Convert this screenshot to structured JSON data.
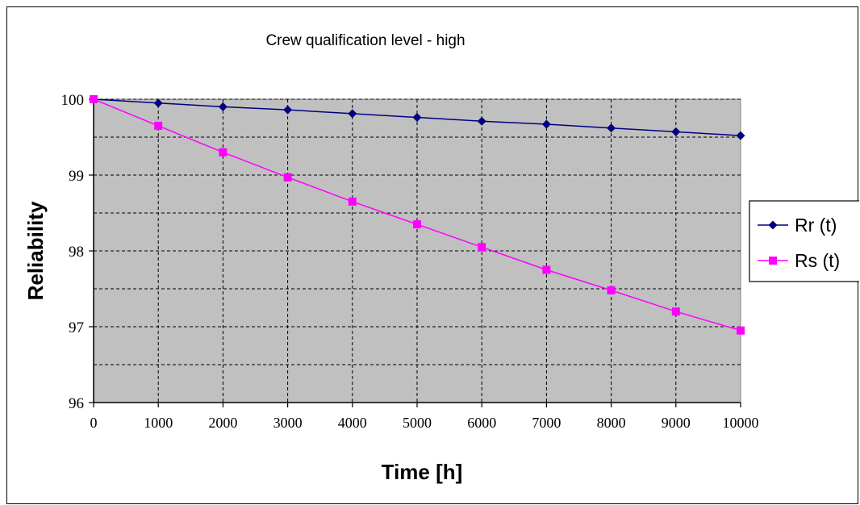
{
  "chart_data": {
    "type": "line",
    "title": "Crew qualification level - high",
    "xlabel": "Time [h]",
    "ylabel": "Reliability",
    "xlim": [
      0,
      10000
    ],
    "ylim": [
      96,
      100
    ],
    "x": [
      0,
      1000,
      2000,
      3000,
      4000,
      5000,
      6000,
      7000,
      8000,
      9000,
      10000
    ],
    "x_tick_labels": [
      "0",
      "1000",
      "2000",
      "3000",
      "4000",
      "5000",
      "6000",
      "7000",
      "8000",
      "9000",
      "10000"
    ],
    "y_ticks": [
      96,
      97,
      98,
      99,
      100
    ],
    "y_tick_labels": [
      "96",
      "97",
      "98",
      "99",
      "100"
    ],
    "y_minor_gridlines": [
      96.5,
      97.5,
      98.5,
      99.5
    ],
    "grid": true,
    "plot_background": "#c0c0c0",
    "legend_position": "right",
    "series": [
      {
        "name": "Rr (t)",
        "color": "#000080",
        "marker": "diamond",
        "values": [
          100.0,
          99.95,
          99.9,
          99.86,
          99.81,
          99.76,
          99.71,
          99.67,
          99.62,
          99.57,
          99.52
        ]
      },
      {
        "name": "Rs (t)",
        "color": "#ff00ff",
        "marker": "square",
        "values": [
          100.0,
          99.65,
          99.3,
          98.97,
          98.65,
          98.35,
          98.05,
          97.75,
          97.48,
          97.2,
          96.95
        ]
      }
    ]
  }
}
